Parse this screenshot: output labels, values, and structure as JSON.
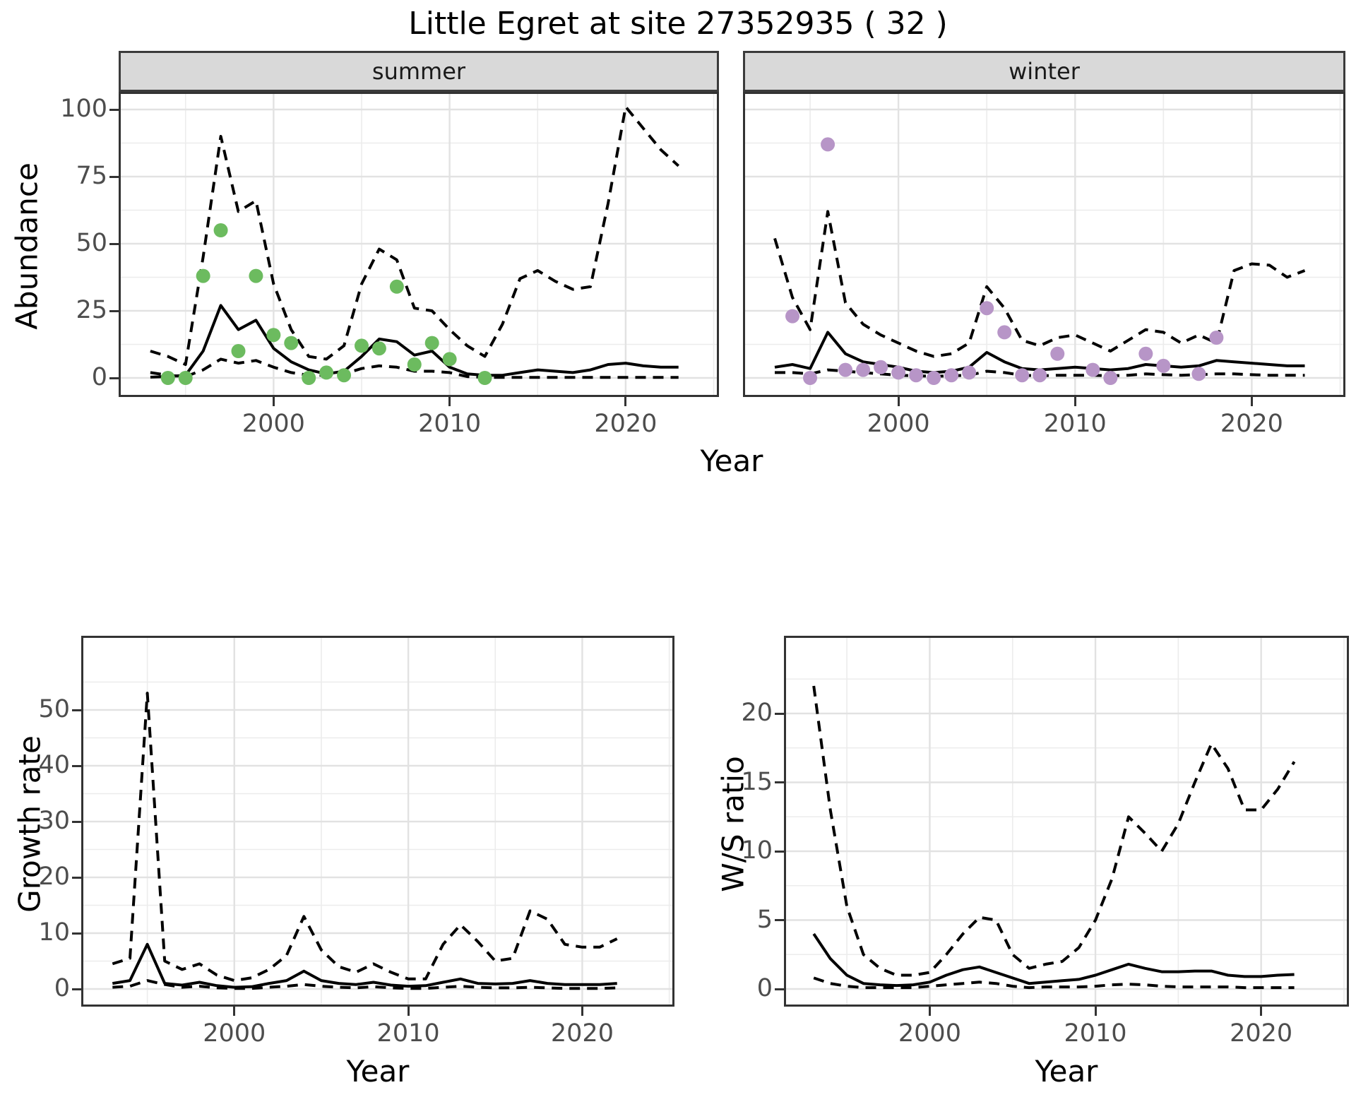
{
  "title": "Little Egret at site 27352935 ( 32 )",
  "colors": {
    "summer_points": "#6cbb5f",
    "winter_points": "#b795c7",
    "line": "#000000",
    "strip_background": "#d9d9d9",
    "grid_major": "#e2e2e2",
    "grid_minor": "#ececec",
    "panel_border": "#333333",
    "tick_text": "#4d4d4d"
  },
  "chart_data": [
    {
      "id": "abundance-summer",
      "type": "line",
      "facet": "summer",
      "ylabel": "Abundance",
      "xlabel": "Year",
      "xlim": [
        1991,
        2025
      ],
      "ylim": [
        0,
        100
      ],
      "x_ticks": [
        2000,
        2010,
        2020
      ],
      "y_ticks": [
        0,
        25,
        50,
        75,
        100
      ],
      "grid": true,
      "legend_position": "none",
      "series": [
        {
          "name": "upper-ci",
          "style": "dashed",
          "x": [
            1993,
            1994,
            1995,
            1996,
            1997,
            1998,
            1999,
            2000,
            2001,
            2002,
            2003,
            2004,
            2005,
            2006,
            2007,
            2008,
            2009,
            2010,
            2011,
            2012,
            2013,
            2014,
            2015,
            2016,
            2017,
            2018,
            2019,
            2020,
            2021,
            2022,
            2023
          ],
          "y": [
            10,
            8,
            5,
            45,
            90,
            62,
            66,
            35,
            18,
            8,
            7,
            12,
            35,
            48,
            44,
            26,
            25,
            18,
            12,
            8,
            20,
            37,
            40,
            36,
            33,
            34,
            65,
            101,
            93,
            85,
            79
          ]
        },
        {
          "name": "lower-ci",
          "style": "dashed",
          "x": [
            1993,
            1994,
            1995,
            1996,
            1997,
            1998,
            1999,
            2000,
            2001,
            2002,
            2003,
            2004,
            2005,
            2006,
            2007,
            2008,
            2009,
            2010,
            2011,
            2012,
            2013,
            2014,
            2015,
            2016,
            2017,
            2018,
            2019,
            2020,
            2021,
            2022,
            2023
          ],
          "y": [
            2,
            1,
            0.5,
            3,
            7,
            5.5,
            6.5,
            4,
            2,
            1,
            1,
            1.5,
            3.5,
            4.5,
            4,
            2.5,
            2.5,
            2,
            0.5,
            0.2,
            0.2,
            0.2,
            0.2,
            0.2,
            0.2,
            0.2,
            0.2,
            0.2,
            0.2,
            0.2,
            0.2
          ]
        },
        {
          "name": "median",
          "style": "solid",
          "x": [
            1993,
            1994,
            1995,
            1996,
            1997,
            1998,
            1999,
            2000,
            2001,
            2002,
            2003,
            2004,
            2005,
            2006,
            2007,
            2008,
            2009,
            2010,
            2011,
            2012,
            2013,
            2014,
            2015,
            2016,
            2017,
            2018,
            2019,
            2020,
            2021,
            2022,
            2023
          ],
          "y": [
            0.3,
            0.5,
            1,
            10,
            27,
            18,
            21.5,
            11,
            6,
            3,
            1.5,
            2.5,
            8,
            14.5,
            13.5,
            8.5,
            10,
            4,
            1.5,
            1,
            1,
            2,
            3,
            2.5,
            2,
            3,
            5,
            5.5,
            4.5,
            4,
            4
          ]
        },
        {
          "name": "observed-counts",
          "style": "points",
          "color": "#6cbb5f",
          "x": [
            1994,
            1995,
            1996,
            1997,
            1998,
            1999,
            2000,
            2001,
            2002,
            2003,
            2004,
            2005,
            2006,
            2007,
            2008,
            2009,
            2010,
            2012
          ],
          "y": [
            0,
            0,
            38,
            55,
            10,
            38,
            16,
            13,
            0,
            2,
            1,
            12,
            11,
            34,
            5,
            13,
            7,
            0
          ]
        }
      ]
    },
    {
      "id": "abundance-winter",
      "type": "line",
      "facet": "winter",
      "ylabel": "Abundance",
      "xlabel": "Year",
      "xlim": [
        1991,
        2025
      ],
      "ylim": [
        0,
        100
      ],
      "x_ticks": [
        2000,
        2010,
        2020
      ],
      "y_ticks": [
        0,
        25,
        50,
        75,
        100
      ],
      "grid": true,
      "legend_position": "none",
      "series": [
        {
          "name": "upper-ci",
          "style": "dashed",
          "x": [
            1993,
            1994,
            1995,
            1996,
            1997,
            1998,
            1999,
            2000,
            2001,
            2002,
            2003,
            2004,
            2005,
            2006,
            2007,
            2008,
            2009,
            2010,
            2011,
            2012,
            2013,
            2014,
            2015,
            2016,
            2017,
            2018,
            2019,
            2020,
            2021,
            2022,
            2023
          ],
          "y": [
            52,
            30,
            18,
            62,
            28,
            20,
            16,
            13,
            10,
            8,
            9,
            13,
            34,
            26,
            14,
            12,
            15,
            16,
            13,
            10,
            14,
            18,
            17,
            13,
            16,
            13,
            40,
            42.5,
            42,
            37.5,
            40
          ]
        },
        {
          "name": "lower-ci",
          "style": "dashed",
          "x": [
            1993,
            1994,
            1995,
            1996,
            1997,
            1998,
            1999,
            2000,
            2001,
            2002,
            2003,
            2004,
            2005,
            2006,
            2007,
            2008,
            2009,
            2010,
            2011,
            2012,
            2013,
            2014,
            2015,
            2016,
            2017,
            2018,
            2019,
            2020,
            2021,
            2022,
            2023
          ],
          "y": [
            2,
            2,
            1.5,
            3,
            2.5,
            2,
            1.5,
            1,
            0.8,
            0.6,
            0.8,
            1,
            2.5,
            2,
            1,
            0.8,
            1,
            1,
            1,
            0.8,
            1,
            1.5,
            1.2,
            1,
            1.2,
            1.5,
            1.5,
            1.2,
            1,
            1,
            1
          ]
        },
        {
          "name": "median",
          "style": "solid",
          "x": [
            1993,
            1994,
            1995,
            1996,
            1997,
            1998,
            1999,
            2000,
            2001,
            2002,
            2003,
            2004,
            2005,
            2006,
            2007,
            2008,
            2009,
            2010,
            2011,
            2012,
            2013,
            2014,
            2015,
            2016,
            2017,
            2018,
            2019,
            2020,
            2021,
            2022,
            2023
          ],
          "y": [
            4,
            5,
            3.5,
            17,
            9,
            6,
            5,
            4,
            2.5,
            2,
            2.5,
            4,
            9.5,
            6,
            3.5,
            3,
            3.5,
            4,
            3.5,
            3,
            3.5,
            5,
            4.5,
            4,
            4.5,
            6.5,
            6,
            5.5,
            5,
            4.5,
            4.5
          ]
        },
        {
          "name": "observed-counts",
          "style": "points",
          "color": "#b795c7",
          "x": [
            1994,
            1995,
            1996,
            1997,
            1998,
            1999,
            2000,
            2001,
            2002,
            2003,
            2004,
            2005,
            2006,
            2007,
            2008,
            2009,
            2011,
            2012,
            2014,
            2015,
            2017,
            2018
          ],
          "y": [
            23,
            0,
            87,
            3,
            3,
            4,
            2,
            1,
            0,
            1,
            2,
            26,
            17,
            1,
            1,
            9,
            3,
            0,
            9,
            4.5,
            1.5,
            15
          ]
        }
      ]
    },
    {
      "id": "growth-rate",
      "type": "line",
      "ylabel": "Growth rate",
      "xlabel": "Year",
      "xlim": [
        1991,
        2025
      ],
      "ylim": [
        0,
        53
      ],
      "x_ticks": [
        2000,
        2010,
        2020
      ],
      "y_ticks": [
        0,
        10,
        20,
        30,
        40,
        50
      ],
      "grid": true,
      "legend_position": "none",
      "series": [
        {
          "name": "upper-ci",
          "style": "dashed",
          "x": [
            1993,
            1994,
            1995,
            1996,
            1997,
            1998,
            1999,
            2000,
            2001,
            2002,
            2003,
            2004,
            2005,
            2006,
            2007,
            2008,
            2009,
            2010,
            2011,
            2012,
            2013,
            2014,
            2015,
            2016,
            2017,
            2018,
            2019,
            2020,
            2021,
            2022
          ],
          "y": [
            4.5,
            5.5,
            53,
            5,
            3.5,
            4.5,
            2.5,
            1.5,
            2,
            3.5,
            6,
            13,
            7,
            4,
            3,
            4.5,
            3,
            1.8,
            1.8,
            8,
            11.5,
            8.5,
            5,
            5.5,
            14,
            12.5,
            8,
            7.5,
            7.5,
            9
          ]
        },
        {
          "name": "lower-ci",
          "style": "dashed",
          "x": [
            1993,
            1994,
            1995,
            1996,
            1997,
            1998,
            1999,
            2000,
            2001,
            2002,
            2003,
            2004,
            2005,
            2006,
            2007,
            2008,
            2009,
            2010,
            2011,
            2012,
            2013,
            2014,
            2015,
            2016,
            2017,
            2018,
            2019,
            2020,
            2021,
            2022
          ],
          "y": [
            0.3,
            0.5,
            1.5,
            0.8,
            0.3,
            0.5,
            0.2,
            0.1,
            0.1,
            0.3,
            0.5,
            0.8,
            0.5,
            0.3,
            0.2,
            0.4,
            0.2,
            0.1,
            0.1,
            0.3,
            0.5,
            0.3,
            0.2,
            0.2,
            0.3,
            0.2,
            0.1,
            0.1,
            0.1,
            0.2
          ]
        },
        {
          "name": "median",
          "style": "solid",
          "x": [
            1993,
            1994,
            1995,
            1996,
            1997,
            1998,
            1999,
            2000,
            2001,
            2002,
            2003,
            2004,
            2005,
            2006,
            2007,
            2008,
            2009,
            2010,
            2011,
            2012,
            2013,
            2014,
            2015,
            2016,
            2017,
            2018,
            2019,
            2020,
            2021,
            2022
          ],
          "y": [
            1,
            1.5,
            8,
            1,
            0.7,
            1.2,
            0.6,
            0.3,
            0.4,
            1,
            1.5,
            3.2,
            1.5,
            1,
            0.8,
            1.2,
            0.7,
            0.5,
            0.6,
            1.2,
            1.8,
            1,
            0.9,
            1,
            1.5,
            1,
            0.8,
            0.8,
            0.8,
            1
          ]
        }
      ]
    },
    {
      "id": "ws-ratio",
      "type": "line",
      "ylabel": "W/S ratio",
      "xlabel": "Year",
      "xlim": [
        1991,
        2025
      ],
      "ylim": [
        0,
        22
      ],
      "x_ticks": [
        2000,
        2010,
        2020
      ],
      "y_ticks": [
        0,
        5,
        10,
        15,
        20
      ],
      "grid": true,
      "legend_position": "none",
      "series": [
        {
          "name": "upper-ci",
          "style": "dashed",
          "x": [
            1993,
            1994,
            1995,
            1996,
            1997,
            1998,
            1999,
            2000,
            2001,
            2002,
            2003,
            2004,
            2005,
            2006,
            2007,
            2008,
            2009,
            2010,
            2011,
            2012,
            2013,
            2014,
            2015,
            2016,
            2017,
            2018,
            2019,
            2020,
            2021,
            2022
          ],
          "y": [
            22,
            13,
            6,
            2.5,
            1.5,
            1,
            1,
            1.2,
            2.5,
            4,
            5.2,
            5,
            2.5,
            1.5,
            1.8,
            2,
            3,
            5,
            8,
            12.5,
            11.3,
            10,
            12,
            15,
            17.8,
            16,
            13,
            13,
            14.5,
            16.5
          ]
        },
        {
          "name": "lower-ci",
          "style": "dashed",
          "x": [
            1993,
            1994,
            1995,
            1996,
            1997,
            1998,
            1999,
            2000,
            2001,
            2002,
            2003,
            2004,
            2005,
            2006,
            2007,
            2008,
            2009,
            2010,
            2011,
            2012,
            2013,
            2014,
            2015,
            2016,
            2017,
            2018,
            2019,
            2020,
            2021,
            2022
          ],
          "y": [
            0.8,
            0.4,
            0.2,
            0.1,
            0.1,
            0.1,
            0.1,
            0.2,
            0.3,
            0.4,
            0.5,
            0.4,
            0.2,
            0.1,
            0.15,
            0.15,
            0.15,
            0.2,
            0.3,
            0.35,
            0.3,
            0.2,
            0.15,
            0.15,
            0.15,
            0.15,
            0.1,
            0.1,
            0.1,
            0.1
          ]
        },
        {
          "name": "median",
          "style": "solid",
          "x": [
            1993,
            1994,
            1995,
            1996,
            1997,
            1998,
            1999,
            2000,
            2001,
            2002,
            2003,
            2004,
            2005,
            2006,
            2007,
            2008,
            2009,
            2010,
            2011,
            2012,
            2013,
            2014,
            2015,
            2016,
            2017,
            2018,
            2019,
            2020,
            2021,
            2022
          ],
          "y": [
            4,
            2.2,
            1,
            0.4,
            0.3,
            0.25,
            0.3,
            0.5,
            1,
            1.4,
            1.6,
            1.2,
            0.8,
            0.4,
            0.5,
            0.6,
            0.7,
            1,
            1.4,
            1.8,
            1.5,
            1.25,
            1.25,
            1.3,
            1.3,
            1,
            0.9,
            0.9,
            1,
            1.05
          ]
        }
      ]
    }
  ]
}
